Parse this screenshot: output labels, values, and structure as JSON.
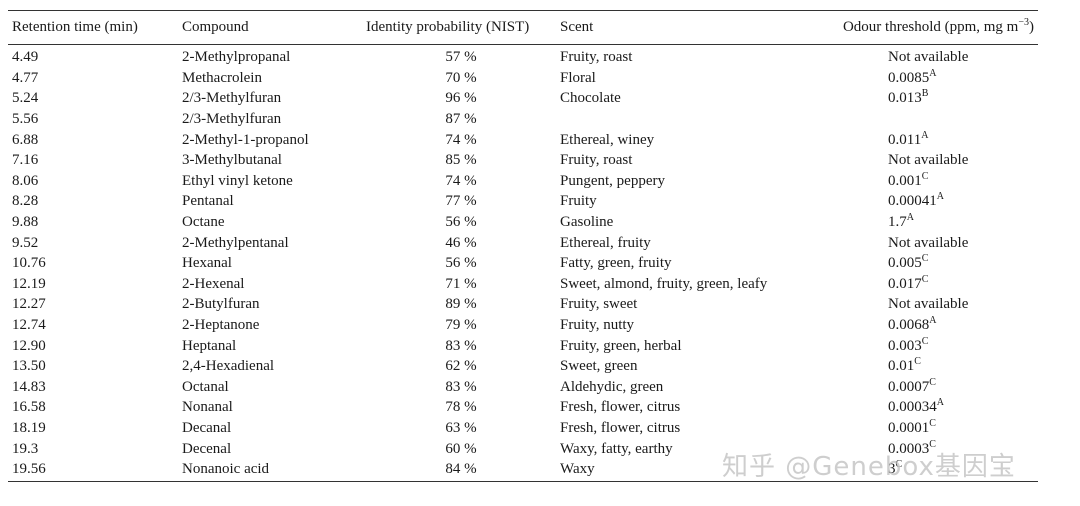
{
  "table": {
    "headers": {
      "rt": "Retention time (min)",
      "compound": "Compound",
      "probability": "Identity probability (NIST)",
      "scent": "Scent",
      "threshold_prefix": "Odour threshold (ppm, mg m",
      "threshold_exp": "−3",
      "threshold_suffix": ")"
    },
    "rows": [
      {
        "rt": "4.49",
        "compound": "2-Methylpropanal",
        "prob": "57 %",
        "scent": "Fruity, roast",
        "threshold": "Not available",
        "sup": ""
      },
      {
        "rt": "4.77",
        "compound": "Methacrolein",
        "prob": "70 %",
        "scent": "Floral",
        "threshold": "0.0085",
        "sup": "A"
      },
      {
        "rt": "5.24",
        "compound": "2/3-Methylfuran",
        "prob": "96 %",
        "scent": "Chocolate",
        "threshold": "0.013",
        "sup": "B"
      },
      {
        "rt": "5.56",
        "compound": "2/3-Methylfuran",
        "prob": "87 %",
        "scent": "",
        "threshold": "",
        "sup": ""
      },
      {
        "rt": "6.88",
        "compound": "2-Methyl-1-propanol",
        "prob": "74 %",
        "scent": "Ethereal, winey",
        "threshold": "0.011",
        "sup": "A"
      },
      {
        "rt": "7.16",
        "compound": "3-Methylbutanal",
        "prob": "85 %",
        "scent": "Fruity, roast",
        "threshold": "Not available",
        "sup": ""
      },
      {
        "rt": "8.06",
        "compound": "Ethyl vinyl ketone",
        "prob": "74 %",
        "scent": "Pungent, peppery",
        "threshold": "0.001",
        "sup": "C"
      },
      {
        "rt": "8.28",
        "compound": "Pentanal",
        "prob": "77 %",
        "scent": "Fruity",
        "threshold": "0.00041",
        "sup": "A"
      },
      {
        "rt": "9.88",
        "compound": "Octane",
        "prob": "56 %",
        "scent": "Gasoline",
        "threshold": "1.7",
        "sup": "A"
      },
      {
        "rt": "9.52",
        "compound": "2-Methylpentanal",
        "prob": "46 %",
        "scent": "Ethereal, fruity",
        "threshold": "Not available",
        "sup": ""
      },
      {
        "rt": "10.76",
        "compound": "Hexanal",
        "prob": "56 %",
        "scent": "Fatty, green, fruity",
        "threshold": "0.005",
        "sup": "C"
      },
      {
        "rt": "12.19",
        "compound": "2-Hexenal",
        "prob": "71 %",
        "scent": "Sweet, almond, fruity, green, leafy",
        "threshold": "0.017",
        "sup": "C"
      },
      {
        "rt": "12.27",
        "compound": "2-Butylfuran",
        "prob": "89 %",
        "scent": "Fruity, sweet",
        "threshold": "Not available",
        "sup": ""
      },
      {
        "rt": "12.74",
        "compound": "2-Heptanone",
        "prob": "79 %",
        "scent": "Fruity, nutty",
        "threshold": "0.0068",
        "sup": "A"
      },
      {
        "rt": "12.90",
        "compound": "Heptanal",
        "prob": "83 %",
        "scent": "Fruity, green, herbal",
        "threshold": "0.003",
        "sup": "C"
      },
      {
        "rt": "13.50",
        "compound": "2,4-Hexadienal",
        "prob": "62 %",
        "scent": "Sweet, green",
        "threshold": "0.01",
        "sup": "C"
      },
      {
        "rt": "14.83",
        "compound": "Octanal",
        "prob": "83 %",
        "scent": "Aldehydic, green",
        "threshold": "0.0007",
        "sup": "C"
      },
      {
        "rt": "16.58",
        "compound": "Nonanal",
        "prob": "78 %",
        "scent": "Fresh, flower, citrus",
        "threshold": "0.00034",
        "sup": "A"
      },
      {
        "rt": "18.19",
        "compound": "Decanal",
        "prob": "63 %",
        "scent": "Fresh, flower, citrus",
        "threshold": "0.0001",
        "sup": "C"
      },
      {
        "rt": "19.3",
        "compound": "Decenal",
        "prob": "60 %",
        "scent": "Waxy, fatty, earthy",
        "threshold": "0.0003",
        "sup": "C"
      },
      {
        "rt": "19.56",
        "compound": "Nonanoic acid",
        "prob": "84 %",
        "scent": "Waxy",
        "threshold": "3",
        "sup": "C"
      }
    ]
  },
  "watermark": "知乎 @Genebox基因宝"
}
